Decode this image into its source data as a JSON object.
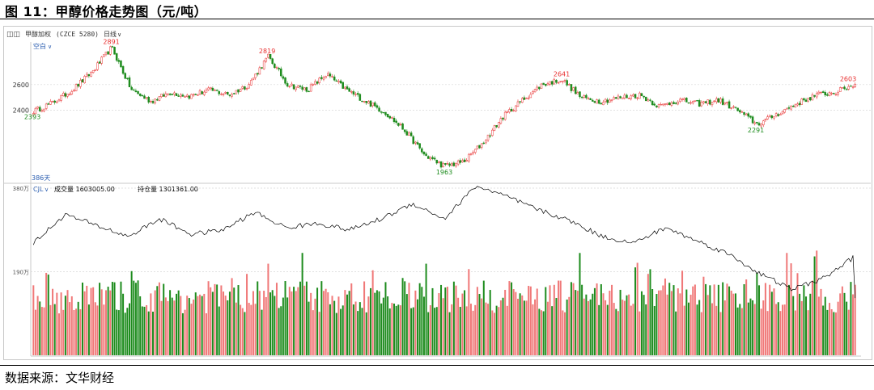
{
  "figure": {
    "title": "图 11：甲醇价格走势图（元/吨）",
    "source": "数据来源：文华财经"
  },
  "toolbar": {
    "icon": "grid-icon",
    "symbol": "甲醇加权",
    "code": "(CZCE 5280)",
    "period": "日线",
    "mode_button": "空白",
    "days_label": "386天",
    "volume_indicator": "CJL",
    "volume_text": "成交量 1603005.00",
    "oi_text": "持仓量 1301361.00"
  },
  "colors": {
    "up": "#e83030",
    "down": "#1e8c1e",
    "grid": "#d8d8d8",
    "line": "#000000"
  },
  "chart_data": [
    {
      "type": "candlestick",
      "title": "",
      "xlabel": "",
      "ylabel": "",
      "ylim": [
        1900,
        2920
      ],
      "yticks": [
        2400,
        2600
      ],
      "ytick_labels": [
        "2400",
        "2600"
      ],
      "grid": true,
      "n_bars": 386,
      "close_approx": [
        2393,
        2460,
        2560,
        2700,
        2891,
        2560,
        2470,
        2540,
        2510,
        2560,
        2520,
        2600,
        2819,
        2600,
        2560,
        2680,
        2560,
        2470,
        2380,
        2240,
        2050,
        1963,
        2000,
        2150,
        2350,
        2480,
        2600,
        2641,
        2500,
        2470,
        2500,
        2520,
        2430,
        2480,
        2450,
        2480,
        2400,
        2291,
        2370,
        2450,
        2520,
        2540,
        2603
      ],
      "annotations": [
        {
          "label": "2891",
          "value": 2891,
          "type": "high"
        },
        {
          "label": "2819",
          "value": 2819,
          "type": "high"
        },
        {
          "label": "2641",
          "value": 2641,
          "type": "high"
        },
        {
          "label": "2603",
          "value": 2603,
          "type": "high"
        },
        {
          "label": "2393",
          "value": 2393,
          "type": "low"
        },
        {
          "label": "1963",
          "value": 1963,
          "type": "low"
        },
        {
          "label": "2291",
          "value": 2291,
          "type": "low"
        }
      ]
    },
    {
      "type": "bar",
      "title": "",
      "series": [
        {
          "name": "成交量",
          "last_value": 1603005.0
        },
        {
          "name": "持仓量",
          "last_value": 1301361.0
        }
      ],
      "ylim": [
        0,
        3800000
      ],
      "ytick_labels": [
        "190万",
        "380万"
      ],
      "oi_shape_approx": [
        2550000,
        3200000,
        2950000,
        2700000,
        3100000,
        2750000,
        2850000,
        3250000,
        2900000,
        3000000,
        2850000,
        3100000,
        3450000,
        3100000,
        3850000,
        3600000,
        3300000,
        3050000,
        2700000,
        2550000,
        2900000,
        2600000,
        2300000,
        1850000,
        1500000,
        1750000,
        2250000
      ]
    }
  ]
}
